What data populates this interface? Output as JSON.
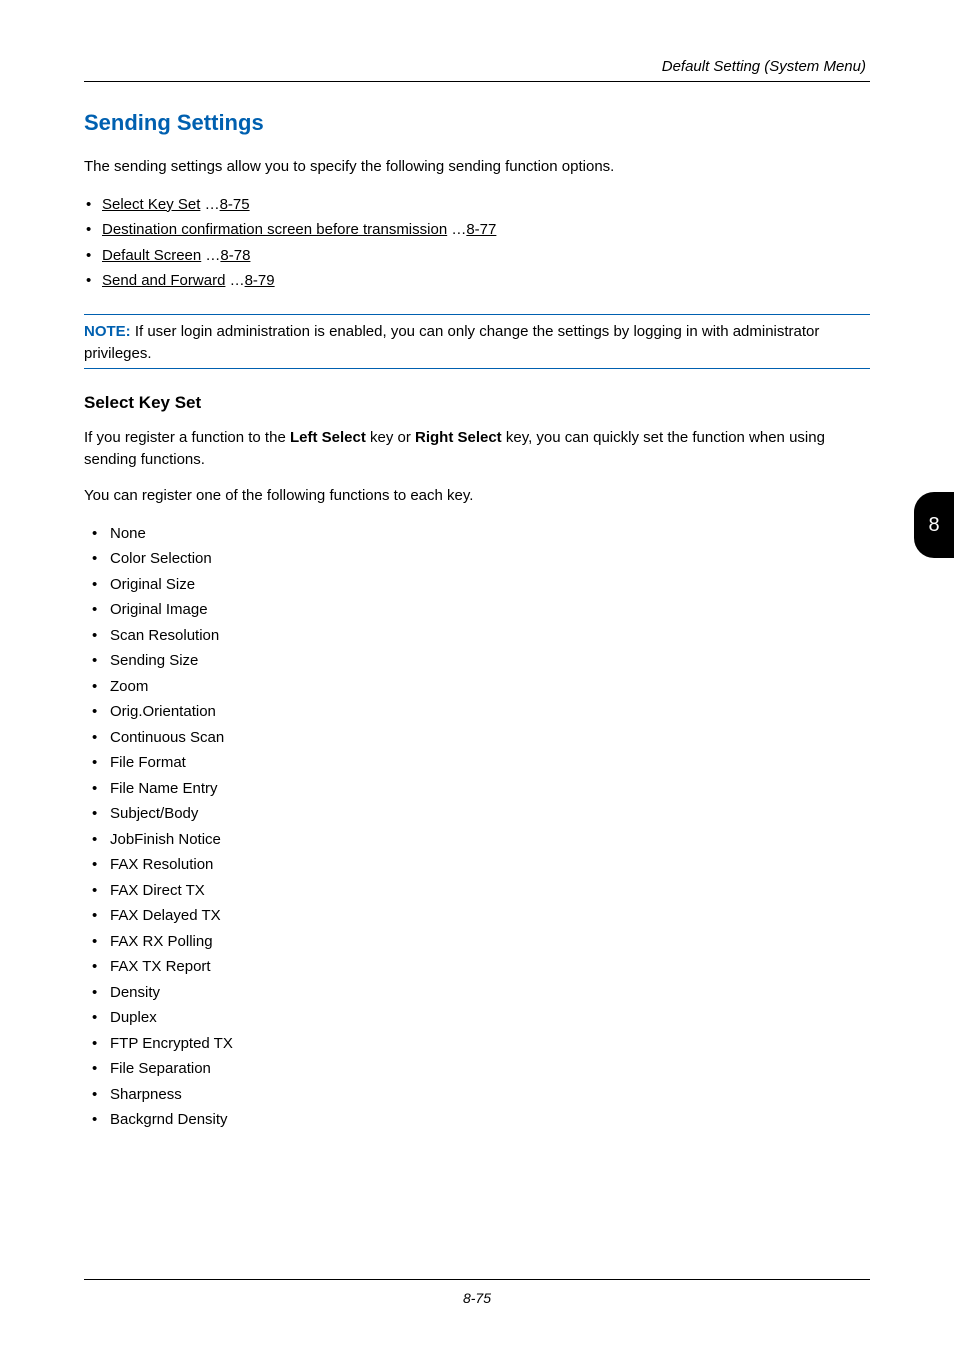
{
  "header": {
    "section_title": "Default Setting (System Menu)"
  },
  "side_tab": {
    "number": "8"
  },
  "main": {
    "heading": "Sending Settings",
    "intro": "The sending settings allow you to specify the following sending function options.",
    "links": [
      {
        "label": "Select Key Set",
        "page": "8-75"
      },
      {
        "label": "Destination confirmation screen before transmission",
        "page": "8-77"
      },
      {
        "label": "Default Screen",
        "page": "8-78"
      },
      {
        "label": "Send and Forward",
        "page": "8-79"
      }
    ],
    "note_label": "NOTE:",
    "note_text": " If user login administration is enabled, you can only change the settings by logging in with administrator privileges.",
    "sub": {
      "heading": "Select Key Set",
      "p1_pre": "If you register a function to the ",
      "p1_b1": "Left Select",
      "p1_mid": " key or ",
      "p1_b2": "Right Select",
      "p1_post": " key, you can quickly set the function when using sending functions.",
      "p2": "You can register one of the following functions to each key.",
      "items": [
        "None",
        "Color Selection",
        "Original Size",
        "Original Image",
        "Scan Resolution",
        "Sending Size",
        "Zoom",
        "Orig.Orientation",
        "Continuous Scan",
        "File Format",
        "File Name Entry",
        "Subject/Body",
        "JobFinish Notice",
        "FAX Resolution",
        "FAX Direct TX",
        "FAX Delayed TX",
        "FAX RX Polling",
        "FAX TX Report",
        "Density",
        "Duplex",
        "FTP Encrypted TX",
        "File Separation",
        "Sharpness",
        "Backgrnd Density"
      ]
    }
  },
  "footer": {
    "page_number": "8-75"
  }
}
